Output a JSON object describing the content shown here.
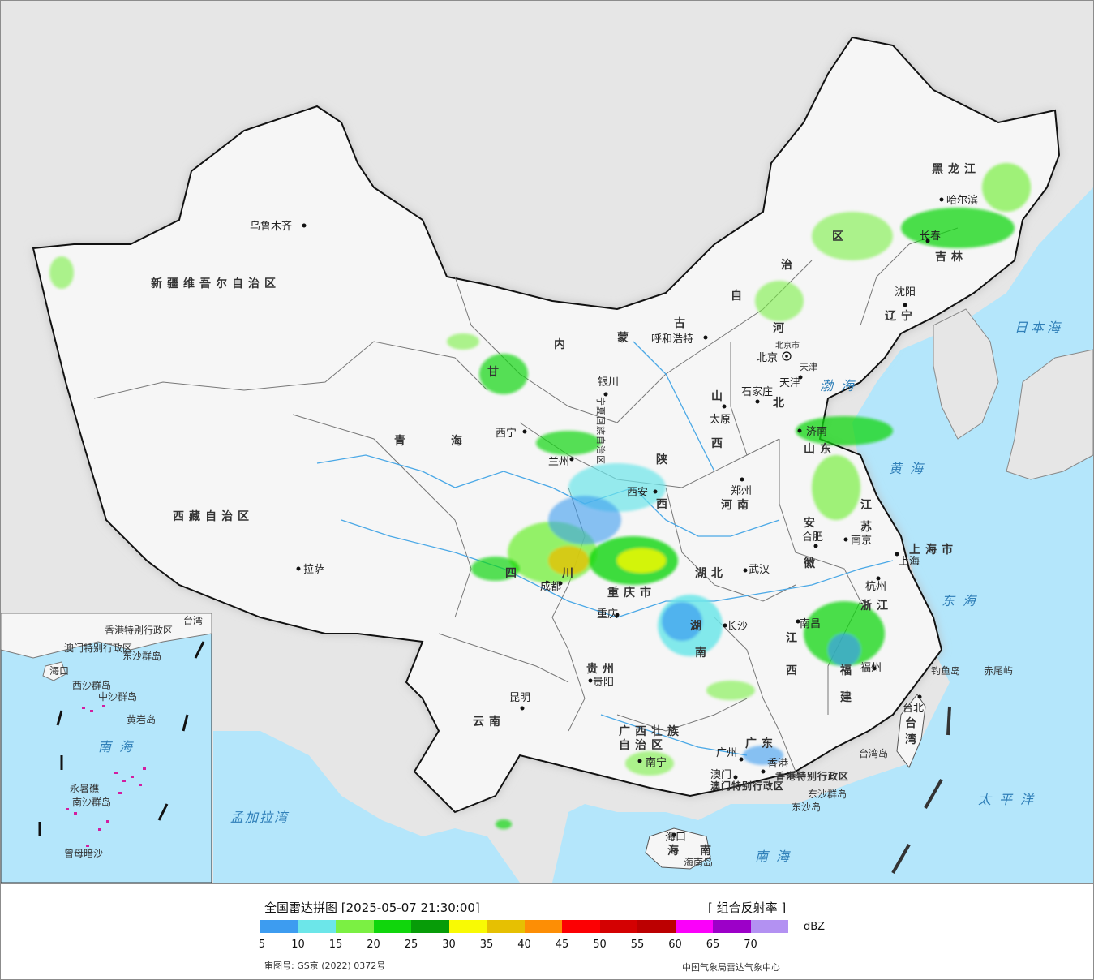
{
  "map": {
    "provinces": [
      {
        "id": "xinjiang",
        "label": "新疆维吾尔自治区"
      },
      {
        "id": "xizang",
        "label": "西藏自治区"
      },
      {
        "id": "qinghai1",
        "label": "青"
      },
      {
        "id": "qinghai2",
        "label": "海"
      },
      {
        "id": "gansu",
        "label": "甘"
      },
      {
        "id": "neimenggu1",
        "label": "内"
      },
      {
        "id": "neimenggu2",
        "label": "蒙"
      },
      {
        "id": "neimenggu3",
        "label": "古"
      },
      {
        "id": "neimenggu4",
        "label": "自"
      },
      {
        "id": "neimenggu5",
        "label": "治"
      },
      {
        "id": "neimenggu6",
        "label": "区"
      },
      {
        "id": "heilongjiang",
        "label": "黑龙江"
      },
      {
        "id": "jilin",
        "label": "吉林"
      },
      {
        "id": "liaoning",
        "label": "辽宁"
      },
      {
        "id": "hebei1",
        "label": "河"
      },
      {
        "id": "hebei2",
        "label": "北"
      },
      {
        "id": "shanxi1",
        "label": "山"
      },
      {
        "id": "shanxi2",
        "label": "西"
      },
      {
        "id": "shaanxi1",
        "label": "陕"
      },
      {
        "id": "shaanxi2",
        "label": "西"
      },
      {
        "id": "shandong",
        "label": "山东"
      },
      {
        "id": "henan",
        "label": "河南"
      },
      {
        "id": "jiangsu1",
        "label": "江"
      },
      {
        "id": "jiangsu2",
        "label": "苏"
      },
      {
        "id": "anhui1",
        "label": "安"
      },
      {
        "id": "anhui2",
        "label": "徽"
      },
      {
        "id": "hubei",
        "label": "湖北"
      },
      {
        "id": "sichuan1",
        "label": "四"
      },
      {
        "id": "sichuan2",
        "label": "川"
      },
      {
        "id": "chongqing",
        "label": "重庆市"
      },
      {
        "id": "zhejiang",
        "label": "浙江"
      },
      {
        "id": "hunan1",
        "label": "湖"
      },
      {
        "id": "hunan2",
        "label": "南"
      },
      {
        "id": "jiangxi1",
        "label": "江"
      },
      {
        "id": "jiangxi2",
        "label": "西"
      },
      {
        "id": "fujian1",
        "label": "福"
      },
      {
        "id": "fujian2",
        "label": "建"
      },
      {
        "id": "guizhou",
        "label": "贵州"
      },
      {
        "id": "yunnan",
        "label": "云南"
      },
      {
        "id": "guangxi1",
        "label": "广西壮族"
      },
      {
        "id": "guangxi2",
        "label": "自治区"
      },
      {
        "id": "guangdong",
        "label": "广东"
      },
      {
        "id": "hainan1",
        "label": "海"
      },
      {
        "id": "hainan2",
        "label": "南"
      },
      {
        "id": "taiwan1",
        "label": "台"
      },
      {
        "id": "taiwan2",
        "label": "湾"
      },
      {
        "id": "shanghai",
        "label": "上海市"
      },
      {
        "id": "ningxia",
        "label": "宁夏回族自治区"
      },
      {
        "id": "tianjin",
        "label": "天津"
      },
      {
        "id": "beijing",
        "label": "北京市"
      },
      {
        "id": "hk",
        "label": "香港特别行政区"
      },
      {
        "id": "macao",
        "label": "澳门特别行政区"
      }
    ],
    "cities": [
      {
        "id": "urumqi",
        "label": "乌鲁木齐"
      },
      {
        "id": "lhasa",
        "label": "拉萨"
      },
      {
        "id": "xining",
        "label": "西宁"
      },
      {
        "id": "lanzhou",
        "label": "兰州"
      },
      {
        "id": "yinchuan",
        "label": "银川"
      },
      {
        "id": "hohhot",
        "label": "呼和浩特"
      },
      {
        "id": "beijing",
        "label": "北京"
      },
      {
        "id": "tianjin",
        "label": "天津"
      },
      {
        "id": "shijiazhuang",
        "label": "石家庄"
      },
      {
        "id": "taiyuan",
        "label": "太原"
      },
      {
        "id": "xian",
        "label": "西安"
      },
      {
        "id": "zhengzhou",
        "label": "郑州"
      },
      {
        "id": "jinan",
        "label": "济南"
      },
      {
        "id": "nanjing",
        "label": "南京"
      },
      {
        "id": "hefei",
        "label": "合肥"
      },
      {
        "id": "shanghai",
        "label": "上海"
      },
      {
        "id": "hangzhou",
        "label": "杭州"
      },
      {
        "id": "wuhan",
        "label": "武汉"
      },
      {
        "id": "chengdu",
        "label": "成都"
      },
      {
        "id": "chongqing",
        "label": "重庆"
      },
      {
        "id": "changsha",
        "label": "长沙"
      },
      {
        "id": "nanchang",
        "label": "南昌"
      },
      {
        "id": "fuzhou",
        "label": "福州"
      },
      {
        "id": "guiyang",
        "label": "贵阳"
      },
      {
        "id": "kunming",
        "label": "昆明"
      },
      {
        "id": "nanning",
        "label": "南宁"
      },
      {
        "id": "guangzhou",
        "label": "广州"
      },
      {
        "id": "hongkong",
        "label": "香港"
      },
      {
        "id": "macau",
        "label": "澳门"
      },
      {
        "id": "haikou",
        "label": "海口"
      },
      {
        "id": "taibei",
        "label": "台北"
      },
      {
        "id": "harbin",
        "label": "哈尔滨"
      },
      {
        "id": "changchun",
        "label": "长春"
      },
      {
        "id": "shenyang",
        "label": "沈阳"
      }
    ],
    "seas": [
      {
        "id": "bohai",
        "label": "渤海"
      },
      {
        "id": "huanghai",
        "label": "黄海"
      },
      {
        "id": "donghai",
        "label": "东海"
      },
      {
        "id": "nanhai",
        "label": "南海"
      },
      {
        "id": "taipingyang",
        "label": "太平洋"
      },
      {
        "id": "ribenhai",
        "label": "日本海"
      },
      {
        "id": "mengjialawan",
        "label": "孟加拉湾"
      }
    ],
    "islands": [
      {
        "id": "diaoyu",
        "label": "钓鱼岛"
      },
      {
        "id": "chiwei",
        "label": "赤尾屿"
      },
      {
        "id": "taiwandao",
        "label": "台湾岛"
      },
      {
        "id": "dongsha",
        "label": "东沙群岛"
      },
      {
        "id": "dongshadao",
        "label": "东沙岛"
      },
      {
        "id": "hainandao",
        "label": "海南岛"
      }
    ],
    "inset": {
      "labels": [
        "南海",
        "西沙群岛",
        "中沙群岛",
        "南沙群岛",
        "东沙群岛",
        "香港特别行政区",
        "澳门特别行政区",
        "台湾",
        "海口",
        "曾母暗沙",
        "永暑礁",
        "黄岩岛"
      ]
    }
  },
  "legend": {
    "title": "全国雷达拼图 [2025-05-07 21:30:00]",
    "product": "[ 组合反射率 ]",
    "unit": "dBZ",
    "ticks": [
      "5",
      "10",
      "15",
      "20",
      "25",
      "30",
      "35",
      "40",
      "45",
      "50",
      "55",
      "60",
      "65",
      "70"
    ],
    "colors": [
      "#3d9cf0",
      "#6ce6e9",
      "#7bf043",
      "#10d60c",
      "#079c08",
      "#f9fa03",
      "#e6c002",
      "#fd8e05",
      "#fc0003",
      "#d40102",
      "#bc0001",
      "#fb00fa",
      "#9c00c8",
      "#b391f2"
    ],
    "approval": "审图号: GS京 (2022) 0372号",
    "issuer": "中国气象局雷达气象中心"
  }
}
